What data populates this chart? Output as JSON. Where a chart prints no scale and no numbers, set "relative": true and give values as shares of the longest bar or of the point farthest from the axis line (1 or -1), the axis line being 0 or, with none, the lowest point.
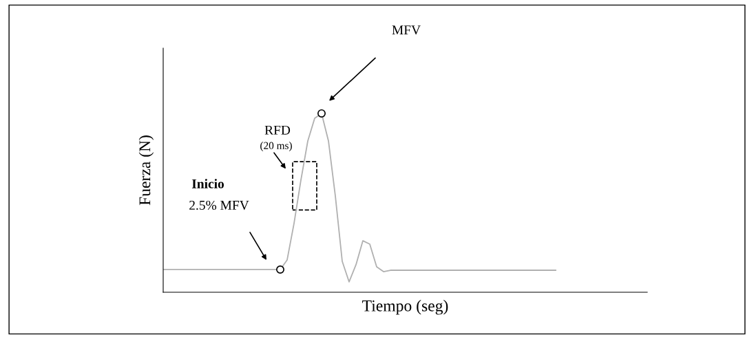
{
  "chart_data": {
    "type": "line",
    "relative": true,
    "xlabel": "Tiempo (seg)",
    "ylabel": "Fuerza (N)",
    "tick_labels": false,
    "legend": false,
    "categories": [
      null,
      null,
      null,
      null,
      null,
      null,
      null,
      null,
      null,
      null,
      null,
      null,
      null,
      null,
      null,
      null,
      null,
      null,
      null,
      null,
      null,
      null,
      null,
      null,
      null,
      null,
      null,
      null,
      null,
      null,
      null,
      null,
      null,
      null,
      null,
      null,
      null,
      null,
      null,
      null,
      null,
      null,
      null,
      null,
      null,
      null,
      null,
      null,
      null,
      null,
      null,
      null,
      null,
      null,
      null,
      null,
      null,
      null
    ],
    "series": [
      {
        "color": "#b0b0b0",
        "marker": "none",
        "values": [
          0.127,
          0.127,
          0.127,
          0.127,
          0.127,
          0.127,
          0.127,
          0.127,
          0.127,
          0.127,
          0.127,
          0.127,
          0.127,
          0.127,
          0.127,
          0.127,
          0.127,
          0.127,
          0.181,
          0.385,
          0.627,
          0.846,
          0.973,
          1,
          0.846,
          0.538,
          0.173,
          0.058,
          0.154,
          0.288,
          0.269,
          0.142,
          0.115,
          0.123,
          0.123,
          0.123,
          0.123,
          0.123,
          0.123,
          0.123,
          0.123,
          0.123,
          0.123,
          0.123,
          0.123,
          0.123,
          0.123,
          0.123,
          0.123,
          0.123,
          0.123,
          0.123,
          0.123,
          0.123,
          0.123,
          0.123,
          0.123,
          0.123
        ]
      }
    ],
    "annotations": [
      "MFV",
      "RFD",
      "(20 ms)",
      "Inicio",
      "2.5% MFV"
    ]
  }
}
